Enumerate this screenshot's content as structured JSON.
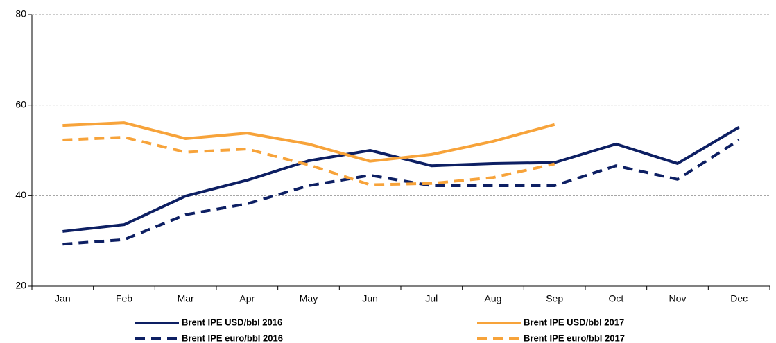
{
  "chart_data": {
    "type": "line",
    "categories": [
      "Jan",
      "Feb",
      "Mar",
      "Apr",
      "May",
      "Jun",
      "Jul",
      "Aug",
      "Sep",
      "Oct",
      "Nov",
      "Dec"
    ],
    "series": [
      {
        "name": "Brent IPE USD/bbl 2016",
        "color": "#0d1f63",
        "style": "solid",
        "values": [
          32.1,
          33.6,
          39.9,
          43.4,
          47.7,
          50.0,
          46.6,
          47.1,
          47.3,
          51.4,
          47.1,
          55.1
        ]
      },
      {
        "name": "Brent IPE euro/bbl 2016",
        "color": "#0d1f63",
        "style": "dashed",
        "values": [
          29.3,
          30.3,
          35.8,
          38.2,
          42.2,
          44.5,
          42.2,
          42.2,
          42.2,
          46.6,
          43.6,
          52.3
        ]
      },
      {
        "name": "Brent IPE USD/bbl 2017",
        "color": "#f7a33a",
        "style": "solid",
        "values": [
          55.5,
          56.1,
          52.6,
          53.8,
          51.4,
          47.6,
          49.1,
          52.0,
          55.7,
          null,
          null,
          null
        ]
      },
      {
        "name": "Brent IPE euro/bbl 2017",
        "color": "#f7a33a",
        "style": "dashed",
        "values": [
          52.3,
          52.9,
          49.6,
          50.3,
          46.8,
          42.4,
          42.7,
          44.0,
          47.0,
          null,
          null,
          null
        ]
      }
    ],
    "ylim": [
      20,
      80
    ],
    "yticks": [
      20,
      40,
      60,
      80
    ],
    "grid": true
  }
}
